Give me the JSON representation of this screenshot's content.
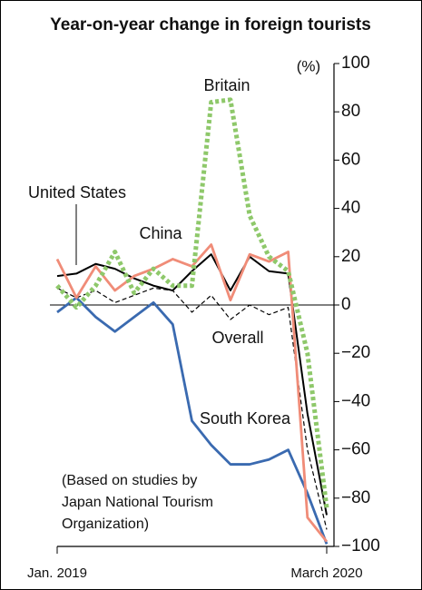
{
  "chart_data": {
    "type": "line",
    "title": "Year-on-year change in foreign tourists",
    "y_unit": "(%)",
    "categories": [
      "Jan. 2019",
      null,
      null,
      null,
      null,
      null,
      null,
      null,
      null,
      null,
      null,
      null,
      null,
      null,
      "March 2020"
    ],
    "ylim": [
      -100,
      100
    ],
    "yticks": [
      100,
      80,
      60,
      40,
      20,
      0,
      {
        "value": -20,
        "label": "−20"
      },
      {
        "value": -40,
        "label": "−40"
      },
      {
        "value": -60,
        "label": "−60"
      },
      {
        "value": -80,
        "label": "−80"
      },
      {
        "value": -100,
        "label": "−100"
      }
    ],
    "series": [
      {
        "name": "Britain",
        "color": "#8ec86a",
        "style": "dotted",
        "values": [
          8,
          -1,
          8,
          22,
          5,
          15,
          8,
          8,
          84,
          85,
          37,
          20,
          14,
          -20,
          -84
        ]
      },
      {
        "name": "United States",
        "color": "#000000",
        "style": "solid",
        "values": [
          12,
          13,
          17,
          15,
          11,
          8,
          6,
          14,
          21,
          6,
          20,
          14,
          13,
          -45,
          -87
        ]
      },
      {
        "name": "China",
        "color": "#f08c78",
        "style": "solid-thick",
        "values": [
          19,
          3,
          16,
          6,
          12,
          15,
          19,
          16,
          25,
          2,
          21,
          18,
          22,
          -88,
          -98
        ]
      },
      {
        "name": "Overall",
        "color": "#000000",
        "style": "dashed",
        "values": [
          7,
          3,
          6,
          1,
          4,
          7,
          6,
          -3,
          4,
          -6,
          0,
          -4,
          -1,
          -60,
          -93
        ]
      },
      {
        "name": "South Korea",
        "color": "#3a6ab0",
        "style": "solid-thick",
        "values": [
          -3,
          3,
          -5,
          -11,
          -5,
          1,
          -8,
          -48,
          -58,
          -66,
          -66,
          -64,
          -60,
          -78,
          -99
        ]
      }
    ],
    "note": [
      "(Based on studies by",
      "Japan National Tourism",
      "Organization)"
    ]
  }
}
